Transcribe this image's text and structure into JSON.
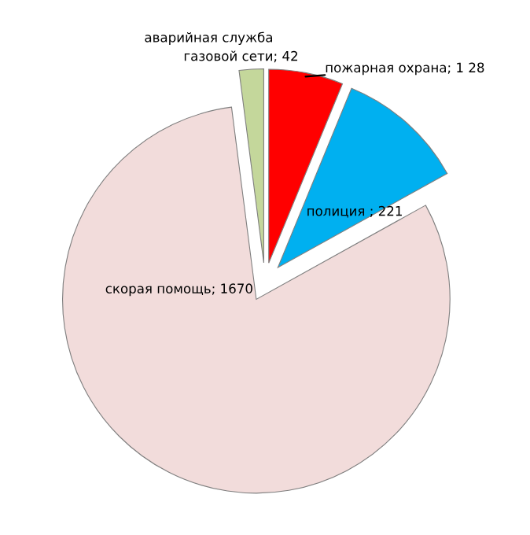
{
  "chart_data": {
    "type": "pie",
    "categories": [
      "аварийная служба газовой сети",
      "скорая помощь",
      "полиция",
      "пожарная охрана"
    ],
    "values": [
      42,
      1670,
      221,
      128
    ],
    "colors": [
      "#c4d79b",
      "#f2dcdb",
      "#00b0f0",
      "#ff0000"
    ],
    "value_labels": [
      "; 42",
      "; 1670",
      " ; 221",
      "; 1 28"
    ]
  }
}
